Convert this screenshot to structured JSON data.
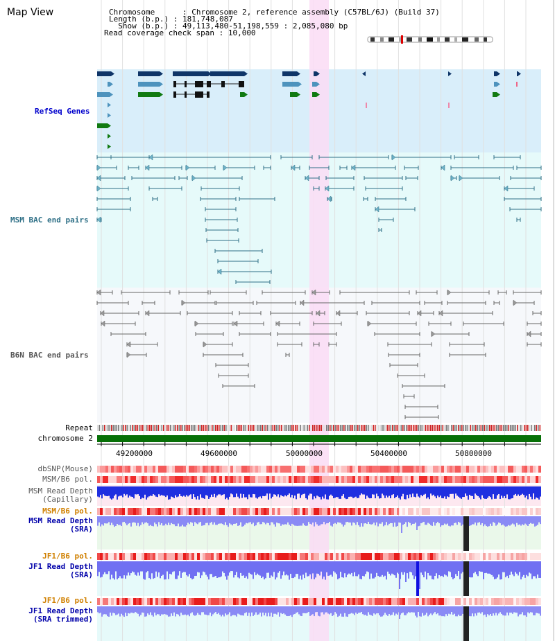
{
  "header": {
    "title": "Map View",
    "lines": [
      {
        "k": "Chromosome      ",
        "v": ": Chromosome 2, reference assembly (C57BL/6J) (Build 37)"
      },
      {
        "k": "Length (b.p.) ",
        "v": ": 181,748,087"
      },
      {
        "k": "  Show (b.p.) ",
        "v": ": 49,113,480-51,198,559 : 2,085,080 bp"
      },
      {
        "k": "Read coverage check span ",
        "v": ": 10,000"
      }
    ]
  },
  "tracks": {
    "refseq": "RefSeq Genes",
    "msm_bac": "MSM BAC end pairs",
    "b6n_bac": "B6N BAC end pairs",
    "repeat": "Repeat",
    "chromosome": "chromosome 2",
    "dbsnp": "dbSNP(Mouse)",
    "msm_b6_pol": "MSM/B6 pol.",
    "msm_depth_cap_1": "MSM Read Depth",
    "msm_depth_cap_2": "(Capillary)",
    "msm_b6_pol_sra": "MSM/B6 pol.",
    "msm_depth_sra_1": "MSM Read Depth",
    "msm_depth_sra_2": "(SRA)",
    "jf1_b6_pol_1": "JF1/B6 pol.",
    "jf1_depth_sra_1": "JF1 Read Depth",
    "jf1_depth_sra_2": "(SRA)",
    "jf1_b6_pol_2": "JF1/B6 pol.",
    "jf1_depth_trim_1": "JF1 Read Depth",
    "jf1_depth_trim_2": "(SRA trimmed)"
  },
  "axis": {
    "ticks": [
      "49200000",
      "49600000",
      "50000000",
      "50400000",
      "50800000"
    ]
  },
  "colors": {
    "refseq_bg": "#d9eefa",
    "msm_bg": "#e6fafa",
    "b6n_bg": "#f6f8fb",
    "highlight": "#fadcf5",
    "gene_dark": "#0f3568",
    "gene_mid": "#4e93bd",
    "gene_green": "#117a11",
    "msm_pair": "#2e6f86",
    "b6n_pair": "#666666",
    "chrom": "#077007",
    "refseq_label": "#0000cc",
    "msm_label": "#2e6f86",
    "b6n_label": "#555555",
    "sra_label": "#0000aa",
    "pol_label": "#d08000"
  }
}
